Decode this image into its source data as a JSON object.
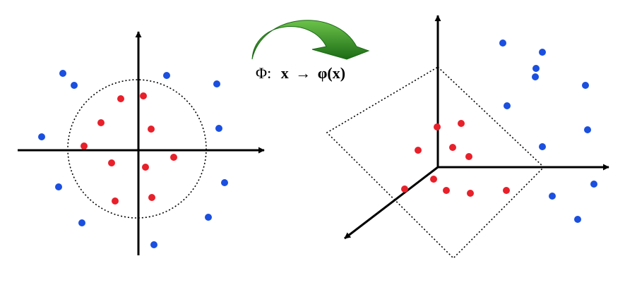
{
  "colors": {
    "background": "#ffffff",
    "axis": "#000000",
    "boundary": "#000000",
    "class_inner": "#e8202a",
    "class_outer": "#1a4fe0",
    "arrow_light": "#56b03a",
    "arrow_dark": "#1c6b16"
  },
  "mapping_label": {
    "phi": "Φ:",
    "source": "x",
    "arrow": "→",
    "target": "φ(x)"
  },
  "icons": {
    "transform_arrow": "curved-arrow-icon"
  },
  "left_panel": {
    "boundary": "circle",
    "inner_points": 10,
    "outer_points": 12
  },
  "right_panel": {
    "boundary": "plane",
    "inner_points": 10,
    "outer_points": 13
  }
}
